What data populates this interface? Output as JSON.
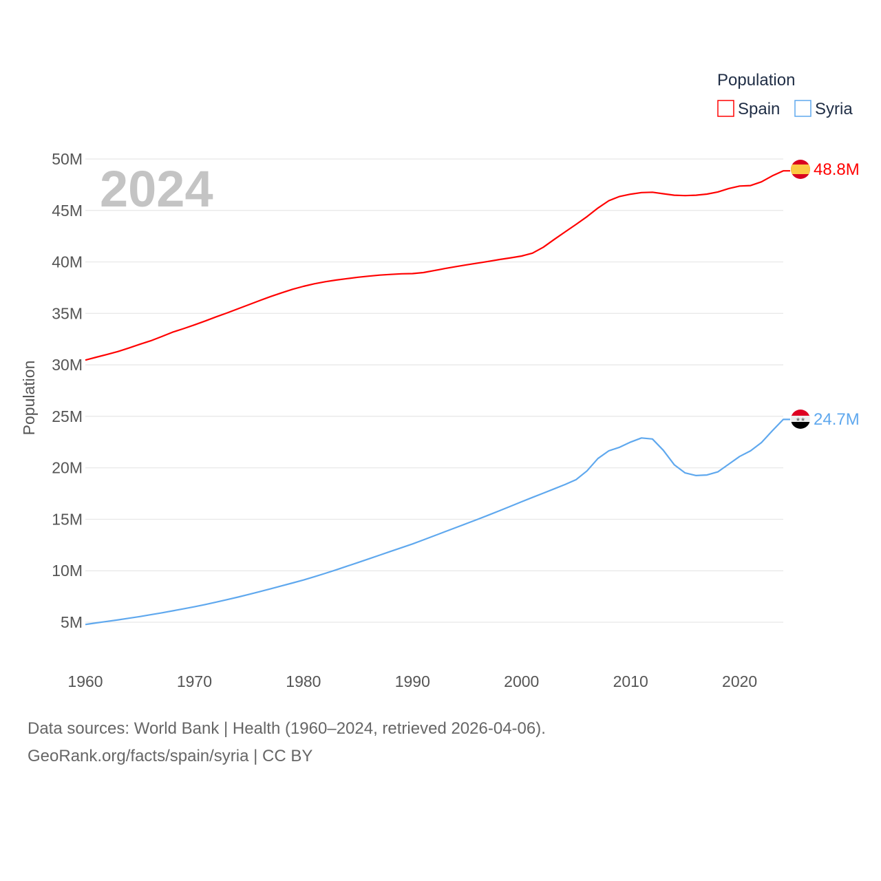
{
  "chart_data": {
    "type": "line",
    "title": "",
    "year_overlay": "2024",
    "xlabel": "",
    "ylabel": "Population",
    "xlim": [
      1960,
      2024
    ],
    "ylim": [
      5000000,
      50000000
    ],
    "x_ticks": [
      "1960",
      "1970",
      "1980",
      "1990",
      "2000",
      "2010",
      "2020"
    ],
    "x_tick_values": [
      1960,
      1970,
      1980,
      1990,
      2000,
      2010,
      2020
    ],
    "y_ticks": [
      "5M",
      "10M",
      "15M",
      "20M",
      "25M",
      "30M",
      "35M",
      "40M",
      "45M",
      "50M"
    ],
    "y_tick_values": [
      5,
      10,
      15,
      20,
      25,
      30,
      35,
      40,
      45,
      50
    ],
    "legend": {
      "title": "Population",
      "placement": "top-right"
    },
    "x": [
      1960,
      1961,
      1962,
      1963,
      1964,
      1965,
      1966,
      1967,
      1968,
      1969,
      1970,
      1971,
      1972,
      1973,
      1974,
      1975,
      1976,
      1977,
      1978,
      1979,
      1980,
      1981,
      1982,
      1983,
      1984,
      1985,
      1986,
      1987,
      1988,
      1989,
      1990,
      1991,
      1992,
      1993,
      1994,
      1995,
      1996,
      1997,
      1998,
      1999,
      2000,
      2001,
      2002,
      2003,
      2004,
      2005,
      2006,
      2007,
      2008,
      2009,
      2010,
      2011,
      2012,
      2013,
      2014,
      2015,
      2016,
      2017,
      2018,
      2019,
      2020,
      2021,
      2022,
      2023,
      2024
    ],
    "units": "millions",
    "series": [
      {
        "name": "Spain",
        "color": "#ff0000",
        "end_label": "48.8M",
        "values": [
          30.46,
          30.74,
          31.02,
          31.3,
          31.64,
          32.0,
          32.34,
          32.75,
          33.18,
          33.52,
          33.88,
          34.27,
          34.67,
          35.05,
          35.45,
          35.85,
          36.25,
          36.64,
          37.0,
          37.34,
          37.63,
          37.88,
          38.08,
          38.24,
          38.38,
          38.51,
          38.62,
          38.72,
          38.79,
          38.85,
          38.87,
          38.97,
          39.16,
          39.36,
          39.55,
          39.72,
          39.89,
          40.06,
          40.24,
          40.4,
          40.57,
          40.85,
          41.43,
          42.19,
          42.92,
          43.65,
          44.4,
          45.23,
          45.95,
          46.36,
          46.58,
          46.74,
          46.77,
          46.62,
          46.48,
          46.44,
          46.48,
          46.59,
          46.8,
          47.13,
          47.37,
          47.42,
          47.78,
          48.37,
          48.85
        ]
      },
      {
        "name": "Syria",
        "color": "#5fa8ee",
        "end_label": "24.7M",
        "values": [
          4.78,
          4.93,
          5.08,
          5.23,
          5.39,
          5.55,
          5.73,
          5.91,
          6.1,
          6.3,
          6.5,
          6.72,
          6.95,
          7.19,
          7.44,
          7.7,
          7.97,
          8.25,
          8.53,
          8.81,
          9.1,
          9.42,
          9.75,
          10.09,
          10.44,
          10.8,
          11.16,
          11.52,
          11.88,
          12.24,
          12.6,
          13.0,
          13.4,
          13.8,
          14.2,
          14.6,
          15.0,
          15.42,
          15.84,
          16.27,
          16.7,
          17.12,
          17.54,
          17.96,
          18.38,
          18.85,
          19.7,
          20.9,
          21.65,
          22.0,
          22.5,
          22.9,
          22.8,
          21.7,
          20.3,
          19.5,
          19.25,
          19.3,
          19.6,
          20.35,
          21.1,
          21.65,
          22.45,
          23.6,
          24.7
        ]
      }
    ]
  },
  "footer": {
    "line1": "Data sources: World Bank | Health (1960–2024, retrieved 2026-04-06).",
    "line2": "GeoRank.org/facts/spain/syria | CC BY"
  }
}
